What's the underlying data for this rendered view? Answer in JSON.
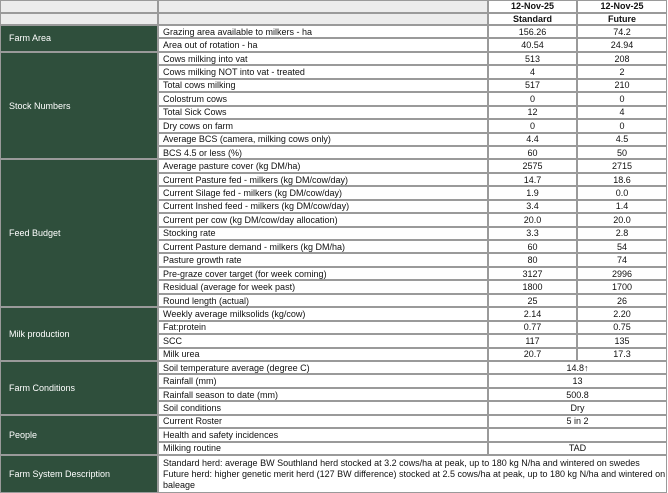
{
  "header": {
    "dates": [
      "12-Nov-25",
      "12-Nov-25"
    ],
    "columns": [
      "Standard",
      "Future"
    ]
  },
  "sections": [
    {
      "name": "Farm Area",
      "rows": [
        {
          "label": "Grazing area available to milkers - ha",
          "values": [
            "156.26",
            "74.2"
          ]
        },
        {
          "label": "Area out of rotation - ha",
          "values": [
            "40.54",
            "24.94"
          ]
        }
      ]
    },
    {
      "name": "Stock Numbers",
      "rows": [
        {
          "label": "Cows milking into vat",
          "values": [
            "513",
            "208"
          ]
        },
        {
          "label": "Cows milking NOT into vat - treated",
          "values": [
            "4",
            "2"
          ]
        },
        {
          "label": "Total cows milking",
          "values": [
            "517",
            "210"
          ]
        },
        {
          "label": "Colostrum cows",
          "values": [
            "0",
            "0"
          ]
        },
        {
          "label": "Total Sick Cows",
          "values": [
            "12",
            "4"
          ]
        },
        {
          "label": "Dry cows on farm",
          "values": [
            "0",
            "0"
          ]
        },
        {
          "label": "Average BCS (camera, milking cows only)",
          "values": [
            "4.4",
            "4.5"
          ]
        },
        {
          "label": "BCS 4.5 or less (%)",
          "values": [
            "60",
            "50"
          ]
        }
      ]
    },
    {
      "name": "Feed Budget",
      "rows": [
        {
          "label": "Average pasture cover (kg DM/ha)",
          "values": [
            "2575",
            "2715"
          ]
        },
        {
          "label": "Current Pasture fed - milkers (kg DM/cow/day)",
          "values": [
            "14.7",
            "18.6"
          ]
        },
        {
          "label": "Current Silage fed - milkers (kg DM/cow/day)",
          "values": [
            "1.9",
            "0.0"
          ]
        },
        {
          "label": "Current Inshed feed - milkers (kg DM/cow/day)",
          "values": [
            "3.4",
            "1.4"
          ]
        },
        {
          "label": "Current per cow (kg DM/cow/day allocation)",
          "values": [
            "20.0",
            "20.0"
          ]
        },
        {
          "label": "Stocking rate",
          "values": [
            "3.3",
            "2.8"
          ]
        },
        {
          "label": "Current Pasture demand - milkers (kg DM/ha)",
          "values": [
            "60",
            "54"
          ]
        },
        {
          "label": "Pasture growth rate",
          "values": [
            "80",
            "74"
          ]
        },
        {
          "label": "Pre-graze cover target (for week coming)",
          "values": [
            "3127",
            "2996"
          ]
        },
        {
          "label": "Residual (average for week past)",
          "values": [
            "1800",
            "1700"
          ]
        },
        {
          "label": "Round length (actual)",
          "values": [
            "25",
            "26"
          ]
        }
      ]
    },
    {
      "name": "Milk production",
      "rows": [
        {
          "label": "Weekly average milksolids (kg/cow)",
          "values": [
            "2.14",
            "2.20"
          ]
        },
        {
          "label": "Fat:protein",
          "values": [
            "0.77",
            "0.75"
          ]
        },
        {
          "label": "SCC",
          "values": [
            "117",
            "135"
          ]
        },
        {
          "label": "Milk urea",
          "values": [
            "20.7",
            "17.3"
          ]
        }
      ]
    },
    {
      "name": "Farm Conditions",
      "rows": [
        {
          "label": "Soil temperature average (degree C)",
          "value": "14.8↑"
        },
        {
          "label": "Rainfall (mm)",
          "value": "13"
        },
        {
          "label": "Rainfall season to date (mm)",
          "value": "500.8"
        },
        {
          "label": "Soil conditions",
          "value": "Dry"
        }
      ]
    },
    {
      "name": "People",
      "rows": [
        {
          "label": "Current Roster",
          "value": "5 in 2"
        },
        {
          "label": "Health and safety incidences"
        },
        {
          "label": "Milking routine",
          "value": "TAD"
        }
      ]
    }
  ],
  "description": {
    "name": "Farm System Description",
    "lines": [
      "Standard herd: average BW Southland herd stocked at 3.2 cows/ha at peak, up to 180 kg N/ha and wintered on swedes",
      "Future herd: higher genetic merit herd (127 BW difference) stocked at 2.5 cows/ha at peak, up to 180 kg N/ha and wintered on baleage"
    ]
  }
}
